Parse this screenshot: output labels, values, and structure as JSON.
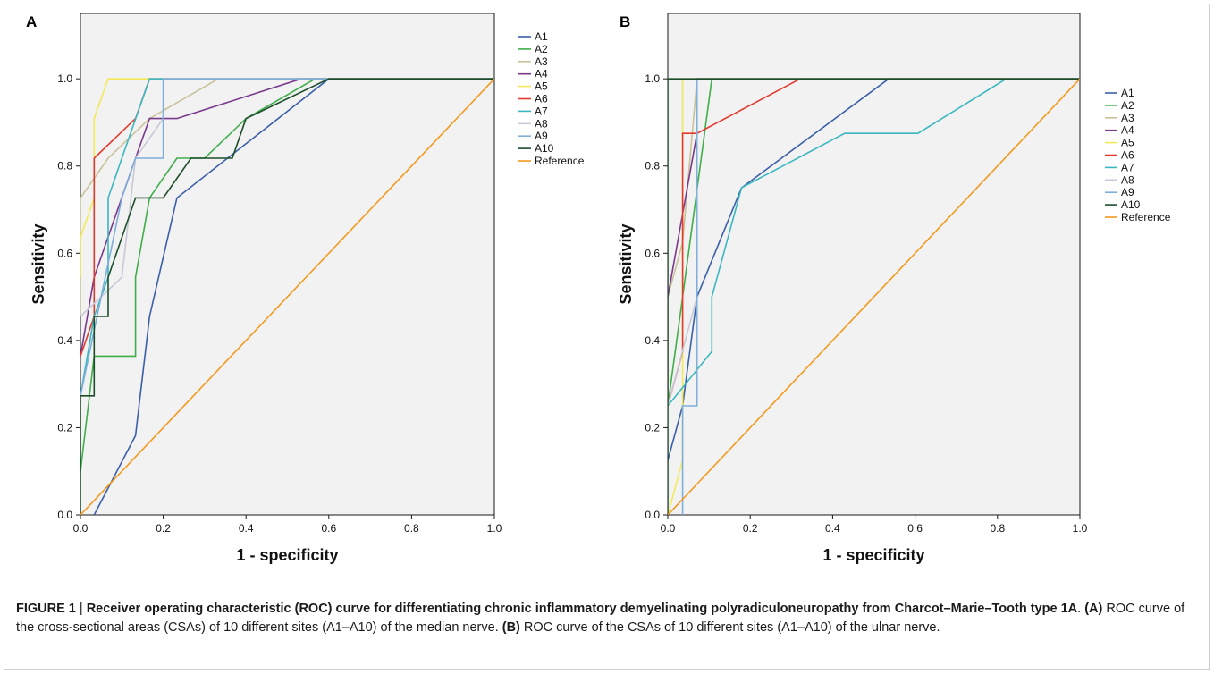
{
  "colors": {
    "A1": "#3b5fa8",
    "A2": "#3fae4a",
    "A3": "#c9c29a",
    "A4": "#7a3a8c",
    "A5": "#f2ea5a",
    "A6": "#e23a2d",
    "A7": "#3ab7c0",
    "A8": "#c8c8d8",
    "A9": "#7faedb",
    "A10": "#1c4d2a",
    "Reference": "#f39a1e",
    "plot_bg": "#f2f2f2"
  },
  "chart_data": [
    {
      "type": "line",
      "panel_label": "A",
      "xlabel": "1 - specificity",
      "ylabel": "Sensitivity",
      "xlim": [
        0,
        1
      ],
      "ylim": [
        0,
        1.15
      ],
      "xticks": [
        "0.0",
        "0.2",
        "0.4",
        "0.6",
        "0.8",
        "1.0"
      ],
      "yticks": [
        "0.0",
        "0.2",
        "0.4",
        "0.6",
        "0.8",
        "1.0"
      ],
      "legend_position": "right",
      "series": [
        {
          "name": "A1",
          "x": [
            0.033,
            0.133,
            0.167,
            0.233,
            0.6,
            1.0
          ],
          "y": [
            0.0,
            0.182,
            0.455,
            0.727,
            1.0,
            1.0
          ]
        },
        {
          "name": "A2",
          "x": [
            0.0,
            0.033,
            0.133,
            0.133,
            0.167,
            0.233,
            0.3,
            0.4,
            0.567,
            1.0
          ],
          "y": [
            0.1,
            0.364,
            0.364,
            0.545,
            0.727,
            0.818,
            0.818,
            0.909,
            1.0,
            1.0
          ]
        },
        {
          "name": "A3",
          "x": [
            0.0,
            0.0,
            0.067,
            0.167,
            0.333,
            1.0
          ],
          "y": [
            0.455,
            0.727,
            0.818,
            0.909,
            1.0,
            1.0
          ]
        },
        {
          "name": "A4",
          "x": [
            0.0,
            0.033,
            0.133,
            0.167,
            0.233,
            0.533,
            1.0
          ],
          "y": [
            0.364,
            0.545,
            0.818,
            0.909,
            0.909,
            1.0,
            1.0
          ]
        },
        {
          "name": "A5",
          "x": [
            0.0,
            0.0,
            0.033,
            0.033,
            0.067,
            1.0
          ],
          "y": [
            0.545,
            0.636,
            0.727,
            0.909,
            1.0,
            1.0
          ]
        },
        {
          "name": "A6",
          "x": [
            0.0,
            0.033,
            0.033,
            0.133,
            0.167,
            1.0
          ],
          "y": [
            0.364,
            0.455,
            0.818,
            0.909,
            1.0,
            1.0
          ]
        },
        {
          "name": "A7",
          "x": [
            0.0,
            0.033,
            0.067,
            0.067,
            0.1,
            0.167,
            1.0
          ],
          "y": [
            0.273,
            0.455,
            0.545,
            0.727,
            0.818,
            1.0,
            1.0
          ]
        },
        {
          "name": "A8",
          "x": [
            0.0,
            0.1,
            0.133,
            0.2,
            0.2,
            1.0
          ],
          "y": [
            0.455,
            0.545,
            0.818,
            0.909,
            1.0,
            1.0
          ]
        },
        {
          "name": "A9",
          "x": [
            0.0,
            0.1,
            0.133,
            0.167,
            0.2,
            0.2,
            1.0
          ],
          "y": [
            0.273,
            0.727,
            0.818,
            0.818,
            0.818,
            1.0,
            1.0
          ]
        },
        {
          "name": "A10",
          "x": [
            0.0,
            0.0,
            0.033,
            0.033,
            0.067,
            0.067,
            0.133,
            0.133,
            0.2,
            0.267,
            0.367,
            0.4,
            0.6,
            1.0
          ],
          "y": [
            0.0,
            0.273,
            0.273,
            0.455,
            0.455,
            0.545,
            0.727,
            0.727,
            0.727,
            0.818,
            0.818,
            0.909,
            1.0,
            1.0
          ]
        },
        {
          "name": "Reference",
          "x": [
            0.0,
            1.0
          ],
          "y": [
            0.0,
            1.0
          ]
        }
      ]
    },
    {
      "type": "line",
      "panel_label": "B",
      "xlabel": "1 - specificity",
      "ylabel": "Sensitivity",
      "xlim": [
        0,
        1
      ],
      "ylim": [
        0,
        1.15
      ],
      "xticks": [
        "0.0",
        "0.2",
        "0.4",
        "0.6",
        "0.8",
        "1.0"
      ],
      "yticks": [
        "0.0",
        "0.2",
        "0.4",
        "0.6",
        "0.8",
        "1.0"
      ],
      "legend_position": "right",
      "series": [
        {
          "name": "A1",
          "x": [
            0.0,
            0.036,
            0.071,
            0.179,
            0.536,
            1.0
          ],
          "y": [
            0.125,
            0.25,
            0.5,
            0.75,
            1.0,
            1.0
          ]
        },
        {
          "name": "A2",
          "x": [
            0.0,
            0.036,
            0.107,
            1.0
          ],
          "y": [
            0.25,
            0.5,
            1.0,
            1.0
          ]
        },
        {
          "name": "A3",
          "x": [
            0.0,
            0.0,
            0.036,
            0.071,
            1.0
          ],
          "y": [
            0.25,
            0.5,
            0.625,
            1.0,
            1.0
          ]
        },
        {
          "name": "A4",
          "x": [
            0.0,
            0.071,
            0.071,
            1.0
          ],
          "y": [
            0.5,
            0.875,
            1.0,
            1.0
          ]
        },
        {
          "name": "A5",
          "x": [
            0.0,
            0.036,
            0.036,
            1.0
          ],
          "y": [
            0.0,
            0.125,
            1.0,
            1.0
          ]
        },
        {
          "name": "A6",
          "x": [
            0.0,
            0.036,
            0.036,
            0.071,
            0.321,
            1.0
          ],
          "y": [
            0.25,
            0.375,
            0.875,
            0.875,
            1.0,
            1.0
          ]
        },
        {
          "name": "A7",
          "x": [
            0.0,
            0.107,
            0.107,
            0.179,
            0.429,
            0.607,
            0.821,
            1.0
          ],
          "y": [
            0.25,
            0.375,
            0.5,
            0.75,
            0.875,
            0.875,
            1.0,
            1.0
          ]
        },
        {
          "name": "A8",
          "x": [
            0.0,
            0.071,
            0.071,
            1.0
          ],
          "y": [
            0.25,
            0.5,
            1.0,
            1.0
          ]
        },
        {
          "name": "A9",
          "x": [
            0.036,
            0.036,
            0.071,
            0.071,
            1.0
          ],
          "y": [
            0.0,
            0.25,
            0.25,
            1.0,
            1.0
          ]
        },
        {
          "name": "A10",
          "x": [
            0.0,
            0.0,
            1.0
          ],
          "y": [
            0.0,
            1.0,
            1.0
          ]
        },
        {
          "name": "Reference",
          "x": [
            0.0,
            1.0
          ],
          "y": [
            0.0,
            1.0
          ]
        }
      ]
    }
  ],
  "caption": {
    "label": "FIGURE 1",
    "separator": " | ",
    "title": "Receiver operating characteristic (ROC) curve for differentiating chronic inflammatory demyelinating polyradiculoneuropathy from Charcot–Marie–Tooth type 1A",
    "title_end": ". ",
    "part_a_label": "(A)",
    "part_a_text": " ROC curve of the cross-sectional areas (CSAs) of 10 different sites (A1–A10) of the median nerve. ",
    "part_b_label": "(B)",
    "part_b_text": " ROC curve of the CSAs of 10 different sites (A1–A10) of the ulnar nerve."
  }
}
